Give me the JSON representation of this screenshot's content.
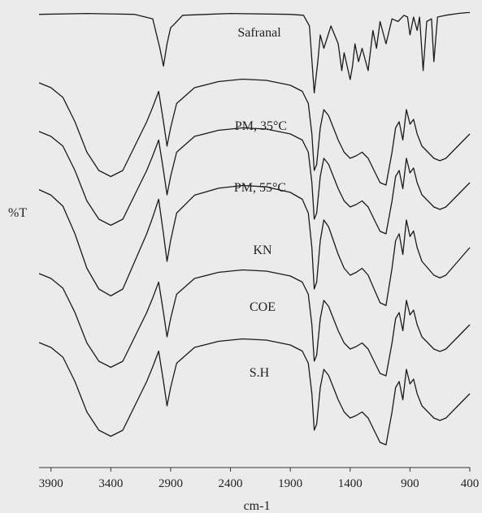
{
  "chart_data": {
    "type": "line",
    "title": "",
    "xlabel": "cm-1",
    "ylabel": "%T",
    "xlim": [
      4000,
      400
    ],
    "x_reversed": true,
    "xticks": [
      3900,
      3400,
      2900,
      2400,
      1900,
      1400,
      900,
      400
    ],
    "grid": false,
    "legend": "none",
    "series": [
      {
        "name": "Safranal",
        "points": [
          [
            4000,
            93
          ],
          [
            3600,
            94
          ],
          [
            3200,
            93
          ],
          [
            3050,
            88
          ],
          [
            2990,
            55
          ],
          [
            2960,
            35
          ],
          [
            2930,
            60
          ],
          [
            2900,
            78
          ],
          [
            2870,
            82
          ],
          [
            2800,
            92
          ],
          [
            2400,
            94
          ],
          [
            1900,
            93
          ],
          [
            1790,
            92
          ],
          [
            1740,
            80
          ],
          [
            1700,
            5
          ],
          [
            1670,
            40
          ],
          [
            1650,
            70
          ],
          [
            1620,
            55
          ],
          [
            1560,
            80
          ],
          [
            1500,
            60
          ],
          [
            1470,
            30
          ],
          [
            1450,
            50
          ],
          [
            1400,
            20
          ],
          [
            1380,
            35
          ],
          [
            1360,
            60
          ],
          [
            1330,
            40
          ],
          [
            1300,
            55
          ],
          [
            1250,
            30
          ],
          [
            1210,
            75
          ],
          [
            1180,
            55
          ],
          [
            1150,
            85
          ],
          [
            1100,
            60
          ],
          [
            1050,
            88
          ],
          [
            1000,
            85
          ],
          [
            950,
            92
          ],
          [
            920,
            90
          ],
          [
            900,
            70
          ],
          [
            870,
            90
          ],
          [
            840,
            75
          ],
          [
            820,
            90
          ],
          [
            790,
            30
          ],
          [
            760,
            85
          ],
          [
            720,
            88
          ],
          [
            700,
            40
          ],
          [
            670,
            90
          ],
          [
            600,
            92
          ],
          [
            500,
            94
          ],
          [
            420,
            95
          ],
          [
            400,
            95
          ]
        ]
      },
      {
        "name": "PM, 35°C",
        "points": [
          [
            4000,
            92
          ],
          [
            3900,
            88
          ],
          [
            3800,
            80
          ],
          [
            3700,
            60
          ],
          [
            3600,
            35
          ],
          [
            3500,
            20
          ],
          [
            3400,
            15
          ],
          [
            3300,
            20
          ],
          [
            3200,
            40
          ],
          [
            3100,
            60
          ],
          [
            3050,
            72
          ],
          [
            3000,
            85
          ],
          [
            2960,
            60
          ],
          [
            2930,
            40
          ],
          [
            2900,
            55
          ],
          [
            2850,
            75
          ],
          [
            2700,
            88
          ],
          [
            2500,
            93
          ],
          [
            2300,
            95
          ],
          [
            2100,
            94
          ],
          [
            1900,
            90
          ],
          [
            1800,
            85
          ],
          [
            1750,
            75
          ],
          [
            1720,
            50
          ],
          [
            1700,
            20
          ],
          [
            1680,
            25
          ],
          [
            1650,
            55
          ],
          [
            1620,
            70
          ],
          [
            1580,
            65
          ],
          [
            1500,
            45
          ],
          [
            1450,
            35
          ],
          [
            1400,
            30
          ],
          [
            1350,
            32
          ],
          [
            1300,
            35
          ],
          [
            1250,
            30
          ],
          [
            1200,
            20
          ],
          [
            1150,
            10
          ],
          [
            1100,
            8
          ],
          [
            1050,
            35
          ],
          [
            1020,
            55
          ],
          [
            990,
            60
          ],
          [
            960,
            45
          ],
          [
            930,
            70
          ],
          [
            900,
            58
          ],
          [
            870,
            62
          ],
          [
            840,
            50
          ],
          [
            800,
            40
          ],
          [
            750,
            35
          ],
          [
            700,
            30
          ],
          [
            650,
            28
          ],
          [
            600,
            30
          ],
          [
            500,
            40
          ],
          [
            450,
            45
          ],
          [
            400,
            50
          ]
        ]
      },
      {
        "name": "PM, 55°C",
        "points": [
          [
            4000,
            92
          ],
          [
            3900,
            88
          ],
          [
            3800,
            80
          ],
          [
            3700,
            60
          ],
          [
            3600,
            35
          ],
          [
            3500,
            20
          ],
          [
            3400,
            15
          ],
          [
            3300,
            20
          ],
          [
            3200,
            40
          ],
          [
            3100,
            60
          ],
          [
            3050,
            72
          ],
          [
            3000,
            85
          ],
          [
            2960,
            60
          ],
          [
            2930,
            40
          ],
          [
            2900,
            55
          ],
          [
            2850,
            75
          ],
          [
            2700,
            88
          ],
          [
            2500,
            93
          ],
          [
            2300,
            95
          ],
          [
            2100,
            94
          ],
          [
            1900,
            90
          ],
          [
            1800,
            85
          ],
          [
            1750,
            75
          ],
          [
            1720,
            50
          ],
          [
            1700,
            20
          ],
          [
            1680,
            25
          ],
          [
            1650,
            55
          ],
          [
            1620,
            70
          ],
          [
            1580,
            65
          ],
          [
            1500,
            45
          ],
          [
            1450,
            35
          ],
          [
            1400,
            30
          ],
          [
            1350,
            32
          ],
          [
            1300,
            35
          ],
          [
            1250,
            30
          ],
          [
            1200,
            20
          ],
          [
            1150,
            10
          ],
          [
            1100,
            8
          ],
          [
            1050,
            35
          ],
          [
            1020,
            55
          ],
          [
            990,
            60
          ],
          [
            960,
            45
          ],
          [
            930,
            70
          ],
          [
            900,
            58
          ],
          [
            870,
            62
          ],
          [
            840,
            50
          ],
          [
            800,
            40
          ],
          [
            750,
            35
          ],
          [
            700,
            30
          ],
          [
            650,
            28
          ],
          [
            600,
            30
          ],
          [
            500,
            40
          ],
          [
            450,
            45
          ],
          [
            400,
            50
          ]
        ]
      },
      {
        "name": "KN",
        "points": [
          [
            4000,
            92
          ],
          [
            3900,
            88
          ],
          [
            3800,
            80
          ],
          [
            3700,
            60
          ],
          [
            3600,
            35
          ],
          [
            3500,
            20
          ],
          [
            3400,
            15
          ],
          [
            3300,
            20
          ],
          [
            3200,
            40
          ],
          [
            3100,
            60
          ],
          [
            3050,
            72
          ],
          [
            3000,
            85
          ],
          [
            2960,
            60
          ],
          [
            2930,
            40
          ],
          [
            2900,
            55
          ],
          [
            2850,
            75
          ],
          [
            2700,
            88
          ],
          [
            2500,
            93
          ],
          [
            2300,
            95
          ],
          [
            2100,
            94
          ],
          [
            1900,
            90
          ],
          [
            1800,
            85
          ],
          [
            1750,
            75
          ],
          [
            1720,
            50
          ],
          [
            1700,
            20
          ],
          [
            1680,
            25
          ],
          [
            1650,
            55
          ],
          [
            1620,
            70
          ],
          [
            1580,
            65
          ],
          [
            1500,
            45
          ],
          [
            1450,
            35
          ],
          [
            1400,
            30
          ],
          [
            1350,
            32
          ],
          [
            1300,
            35
          ],
          [
            1250,
            30
          ],
          [
            1200,
            20
          ],
          [
            1150,
            10
          ],
          [
            1100,
            8
          ],
          [
            1050,
            35
          ],
          [
            1020,
            55
          ],
          [
            990,
            60
          ],
          [
            960,
            45
          ],
          [
            930,
            70
          ],
          [
            900,
            58
          ],
          [
            870,
            62
          ],
          [
            840,
            50
          ],
          [
            800,
            40
          ],
          [
            750,
            35
          ],
          [
            700,
            30
          ],
          [
            650,
            28
          ],
          [
            600,
            30
          ],
          [
            500,
            40
          ],
          [
            450,
            45
          ],
          [
            400,
            50
          ]
        ]
      },
      {
        "name": "COE",
        "points": [
          [
            4000,
            92
          ],
          [
            3900,
            88
          ],
          [
            3800,
            80
          ],
          [
            3700,
            60
          ],
          [
            3600,
            35
          ],
          [
            3500,
            20
          ],
          [
            3400,
            15
          ],
          [
            3300,
            20
          ],
          [
            3200,
            40
          ],
          [
            3100,
            60
          ],
          [
            3050,
            72
          ],
          [
            3000,
            85
          ],
          [
            2960,
            60
          ],
          [
            2930,
            40
          ],
          [
            2900,
            55
          ],
          [
            2850,
            75
          ],
          [
            2700,
            88
          ],
          [
            2500,
            93
          ],
          [
            2300,
            95
          ],
          [
            2100,
            94
          ],
          [
            1900,
            90
          ],
          [
            1800,
            85
          ],
          [
            1750,
            75
          ],
          [
            1720,
            50
          ],
          [
            1700,
            20
          ],
          [
            1680,
            25
          ],
          [
            1650,
            55
          ],
          [
            1620,
            70
          ],
          [
            1580,
            65
          ],
          [
            1500,
            45
          ],
          [
            1450,
            35
          ],
          [
            1400,
            30
          ],
          [
            1350,
            32
          ],
          [
            1300,
            35
          ],
          [
            1250,
            30
          ],
          [
            1200,
            20
          ],
          [
            1150,
            10
          ],
          [
            1100,
            8
          ],
          [
            1050,
            35
          ],
          [
            1020,
            55
          ],
          [
            990,
            60
          ],
          [
            960,
            45
          ],
          [
            930,
            70
          ],
          [
            900,
            58
          ],
          [
            870,
            62
          ],
          [
            840,
            50
          ],
          [
            800,
            40
          ],
          [
            750,
            35
          ],
          [
            700,
            30
          ],
          [
            650,
            28
          ],
          [
            600,
            30
          ],
          [
            500,
            40
          ],
          [
            450,
            45
          ],
          [
            400,
            50
          ]
        ]
      },
      {
        "name": "S.H",
        "points": [
          [
            4000,
            92
          ],
          [
            3900,
            88
          ],
          [
            3800,
            80
          ],
          [
            3700,
            60
          ],
          [
            3600,
            35
          ],
          [
            3500,
            20
          ],
          [
            3400,
            15
          ],
          [
            3300,
            20
          ],
          [
            3200,
            40
          ],
          [
            3100,
            60
          ],
          [
            3050,
            72
          ],
          [
            3000,
            85
          ],
          [
            2960,
            60
          ],
          [
            2930,
            40
          ],
          [
            2900,
            55
          ],
          [
            2850,
            75
          ],
          [
            2700,
            88
          ],
          [
            2500,
            93
          ],
          [
            2300,
            95
          ],
          [
            2100,
            94
          ],
          [
            1900,
            90
          ],
          [
            1800,
            85
          ],
          [
            1750,
            75
          ],
          [
            1720,
            50
          ],
          [
            1700,
            20
          ],
          [
            1680,
            25
          ],
          [
            1650,
            55
          ],
          [
            1620,
            70
          ],
          [
            1580,
            65
          ],
          [
            1500,
            45
          ],
          [
            1450,
            35
          ],
          [
            1400,
            30
          ],
          [
            1350,
            32
          ],
          [
            1300,
            35
          ],
          [
            1250,
            30
          ],
          [
            1200,
            20
          ],
          [
            1150,
            10
          ],
          [
            1100,
            8
          ],
          [
            1050,
            35
          ],
          [
            1020,
            55
          ],
          [
            990,
            60
          ],
          [
            960,
            45
          ],
          [
            930,
            70
          ],
          [
            900,
            58
          ],
          [
            870,
            62
          ],
          [
            840,
            50
          ],
          [
            800,
            40
          ],
          [
            750,
            35
          ],
          [
            700,
            30
          ],
          [
            650,
            28
          ],
          [
            600,
            30
          ],
          [
            500,
            40
          ],
          [
            450,
            45
          ],
          [
            400,
            50
          ]
        ]
      }
    ]
  }
}
